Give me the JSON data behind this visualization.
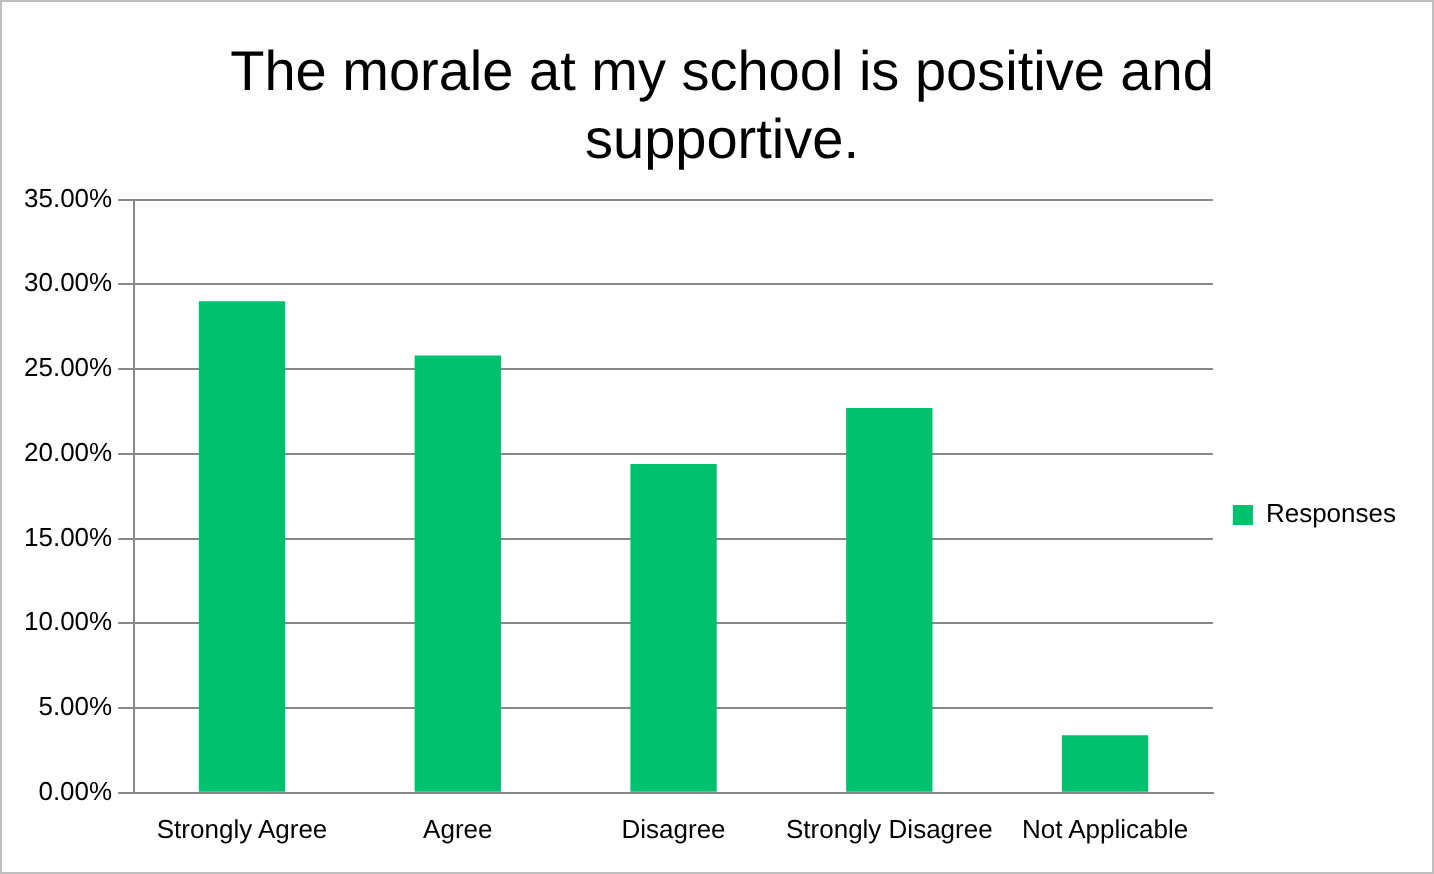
{
  "chart_data": {
    "type": "bar",
    "title": "The morale at my school is positive and supportive.",
    "categories": [
      "Strongly Agree",
      "Agree",
      "Disagree",
      "Strongly Disagree",
      "Not Applicable"
    ],
    "series": [
      {
        "name": "Responses",
        "color": "#00c16e",
        "values": [
          29.0,
          25.8,
          19.4,
          22.7,
          3.4
        ]
      }
    ],
    "ylim": [
      0,
      35
    ],
    "yticks": [
      {
        "value": 0,
        "label": "0.00%"
      },
      {
        "value": 5,
        "label": "5.00%"
      },
      {
        "value": 10,
        "label": "10.00%"
      },
      {
        "value": 15,
        "label": "15.00%"
      },
      {
        "value": 20,
        "label": "20.00%"
      },
      {
        "value": 25,
        "label": "25.00%"
      },
      {
        "value": 30,
        "label": "30.00%"
      },
      {
        "value": 35,
        "label": "35.00%"
      }
    ],
    "grid": "y",
    "legend": "right"
  }
}
